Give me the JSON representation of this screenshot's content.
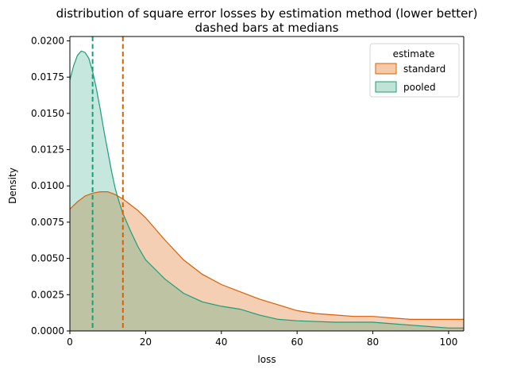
{
  "chart_data": {
    "type": "area",
    "title": "distribution of square error losses by estimation method (lower better)",
    "subtitle": "dashed bars at medians",
    "xlabel": "loss",
    "ylabel": "Density",
    "xlim": [
      0,
      104
    ],
    "ylim": [
      0,
      0.0203
    ],
    "xticks": [
      0,
      20,
      40,
      60,
      80,
      100
    ],
    "yticks": [
      0.0,
      0.0025,
      0.005,
      0.0075,
      0.01,
      0.0125,
      0.015,
      0.0175,
      0.02
    ],
    "xtick_labels": [
      "0",
      "20",
      "40",
      "60",
      "80",
      "100"
    ],
    "ytick_labels": [
      "0.0000",
      "0.0025",
      "0.0050",
      "0.0075",
      "0.0100",
      "0.0125",
      "0.0150",
      "0.0175",
      "0.0200"
    ],
    "grid": false,
    "legend": {
      "title": "estimate",
      "placement": "top-right"
    },
    "series": [
      {
        "name": "standard",
        "color": "#d95f02",
        "fill": "#f6cbab",
        "median": 14,
        "x": [
          0,
          2,
          4,
          6,
          8,
          10,
          12,
          14,
          16,
          18,
          20,
          25,
          30,
          35,
          40,
          45,
          50,
          55,
          60,
          65,
          70,
          75,
          80,
          85,
          90,
          95,
          100,
          104
        ],
        "y": [
          0.0084,
          0.0089,
          0.0093,
          0.0095,
          0.0096,
          0.0096,
          0.0094,
          0.0091,
          0.0087,
          0.0083,
          0.0078,
          0.0063,
          0.0049,
          0.0039,
          0.0032,
          0.0027,
          0.0022,
          0.0018,
          0.0014,
          0.0012,
          0.0011,
          0.001,
          0.001,
          0.0009,
          0.0008,
          0.0008,
          0.0008,
          0.0008
        ]
      },
      {
        "name": "pooled",
        "color": "#1b9e77",
        "fill": "#bfe4d7",
        "median": 6,
        "x": [
          0,
          1,
          2,
          3,
          4,
          5,
          6,
          7,
          8,
          9,
          10,
          11,
          12,
          13,
          14,
          16,
          18,
          20,
          25,
          30,
          35,
          40,
          45,
          50,
          55,
          60,
          70,
          80,
          85,
          90,
          95,
          100,
          104
        ],
        "y": [
          0.0173,
          0.0183,
          0.019,
          0.0193,
          0.0192,
          0.0188,
          0.0179,
          0.0167,
          0.0153,
          0.0138,
          0.0124,
          0.011,
          0.0098,
          0.0089,
          0.0081,
          0.0069,
          0.0058,
          0.0049,
          0.0036,
          0.0026,
          0.002,
          0.0017,
          0.0015,
          0.0011,
          0.0008,
          0.0007,
          0.0006,
          0.0006,
          0.0005,
          0.0004,
          0.0003,
          0.0002,
          0.0002
        ]
      }
    ]
  }
}
